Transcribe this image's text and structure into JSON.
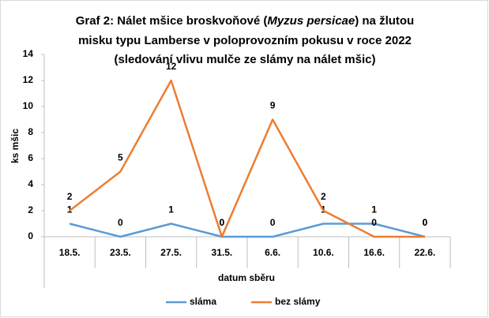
{
  "chart_data": {
    "type": "line",
    "title": [
      [
        "Graf 2: Nálet mšice broskvoňové (",
        "Myzus persicae",
        ") na žlutou"
      ],
      [
        "misku typu Lamberse v poloprovozním pokusu  v roce 2022"
      ],
      [
        "(sledování vlivu mulče ze slámy na nálet mšic)"
      ]
    ],
    "y_label": "ks mšic",
    "x_label": "datum sběru",
    "categories": [
      "18.5.",
      "23.5.",
      "27.5.",
      "31.5.",
      "6.6.",
      "10.6.",
      "16.6.",
      "22.6."
    ],
    "series": [
      {
        "name": "sláma",
        "color": "#5b9bd5",
        "values": [
          1,
          0,
          1,
          0,
          0,
          1,
          1,
          0
        ]
      },
      {
        "name": "bez slámy",
        "color": "#ed7d31",
        "values": [
          2,
          5,
          12,
          0,
          9,
          2,
          0,
          0
        ]
      }
    ],
    "ylim": [
      0,
      14
    ],
    "yticks": [
      0,
      2,
      4,
      6,
      8,
      10,
      12,
      14
    ],
    "grid": false
  }
}
